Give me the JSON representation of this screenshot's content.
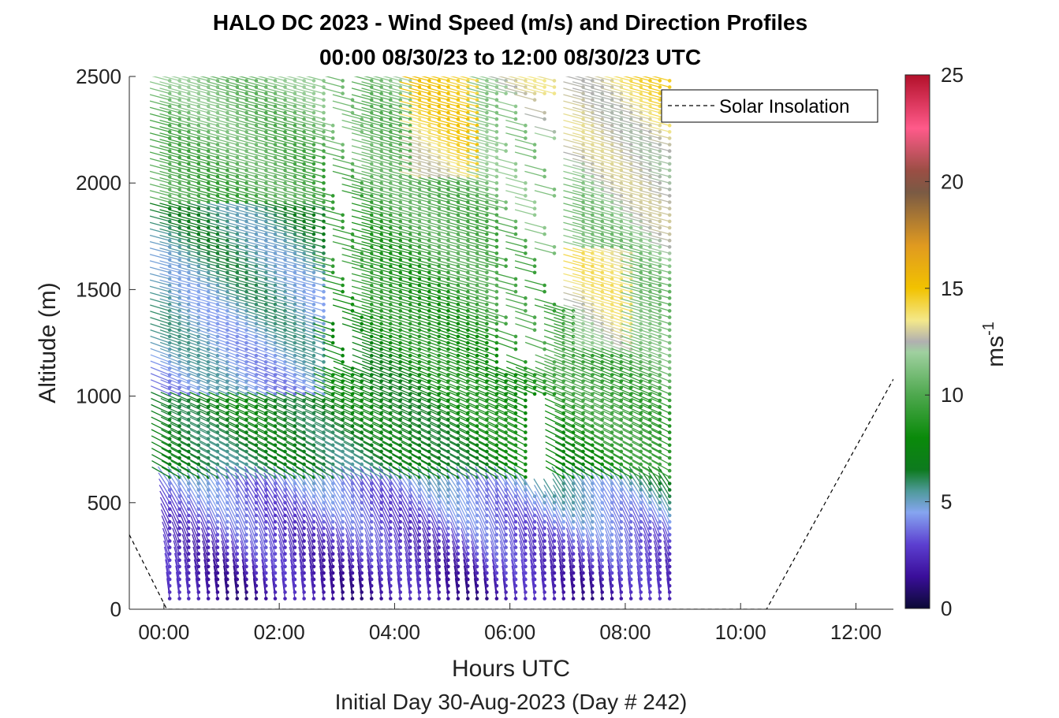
{
  "chart_data": {
    "type": "scatter",
    "subtype": "wind-barb-profile",
    "title": "HALO DC 2023 - Wind Speed (m/s) and Direction Profiles",
    "subtitle": "00:00 08/30/23 to 12:00 08/30/23  UTC",
    "xlabel": "Hours UTC",
    "xsublabel": "Initial Day 30-Aug-2023 (Day # 242)",
    "ylabel": "Altitude (m)",
    "colorbar_label_base": "ms",
    "colorbar_label_exp": "-1",
    "x_ticks": [
      "00:00",
      "02:00",
      "04:00",
      "06:00",
      "08:00",
      "10:00",
      "12:00"
    ],
    "x_tick_values": [
      0,
      2,
      4,
      6,
      8,
      10,
      12
    ],
    "xlim": [
      -0.6,
      12.65
    ],
    "y_ticks": [
      "0",
      "500",
      "1000",
      "1500",
      "2000",
      "2500"
    ],
    "y_tick_values": [
      0,
      500,
      1000,
      1500,
      2000,
      2500
    ],
    "ylim": [
      0,
      2500
    ],
    "colorbar_ticks": [
      "0",
      "5",
      "10",
      "15",
      "20",
      "25"
    ],
    "colorbar_tick_values": [
      0,
      5,
      10,
      15,
      20,
      25
    ],
    "colorbar_range": [
      0,
      25
    ],
    "legend": {
      "entries": [
        "Solar Insolation"
      ],
      "position": "top-right"
    },
    "profile_times": [
      -0.4,
      -0.23,
      -0.07,
      0.1,
      0.27,
      0.43,
      0.6,
      0.77,
      0.93,
      1.1,
      1.27,
      1.43,
      1.6,
      1.77,
      1.93,
      2.1,
      2.27,
      2.43,
      2.6,
      2.77,
      2.93,
      3.1,
      3.27,
      3.43,
      3.6,
      3.77,
      3.93,
      4.1,
      4.27,
      4.43,
      4.6,
      4.77,
      4.93,
      5.1,
      5.27,
      5.43,
      5.6,
      5.77,
      5.93,
      6.1,
      6.27,
      6.43,
      6.6,
      6.77,
      6.93,
      7.1,
      7.27,
      7.43,
      7.6,
      7.77,
      7.93,
      8.1,
      8.27,
      8.43,
      8.6,
      8.77
    ],
    "solar_insolation": {
      "name": "Solar Insolation",
      "x": [
        -0.6,
        0.05,
        10.45,
        12.65
      ],
      "y": [
        350,
        0,
        0,
        1080
      ]
    },
    "colormap": [
      [
        0,
        "#0b0a35"
      ],
      [
        1.5,
        "#3a0e9a"
      ],
      [
        3,
        "#5c3fd0"
      ],
      [
        4.5,
        "#86a5f0"
      ],
      [
        5.5,
        "#4f9a9a"
      ],
      [
        6.5,
        "#0d7a1e"
      ],
      [
        8,
        "#0a8a0a"
      ],
      [
        10,
        "#4ea84e"
      ],
      [
        12,
        "#9fd09f"
      ],
      [
        12.5,
        "#b0b0b0"
      ],
      [
        13.5,
        "#f4e88a"
      ],
      [
        15,
        "#f2c200"
      ],
      [
        17,
        "#e09a20"
      ],
      [
        19.5,
        "#7a5a44"
      ],
      [
        20.5,
        "#9a4e44"
      ],
      [
        22.5,
        "#ff5a8a"
      ],
      [
        25,
        "#b2102a"
      ]
    ]
  }
}
